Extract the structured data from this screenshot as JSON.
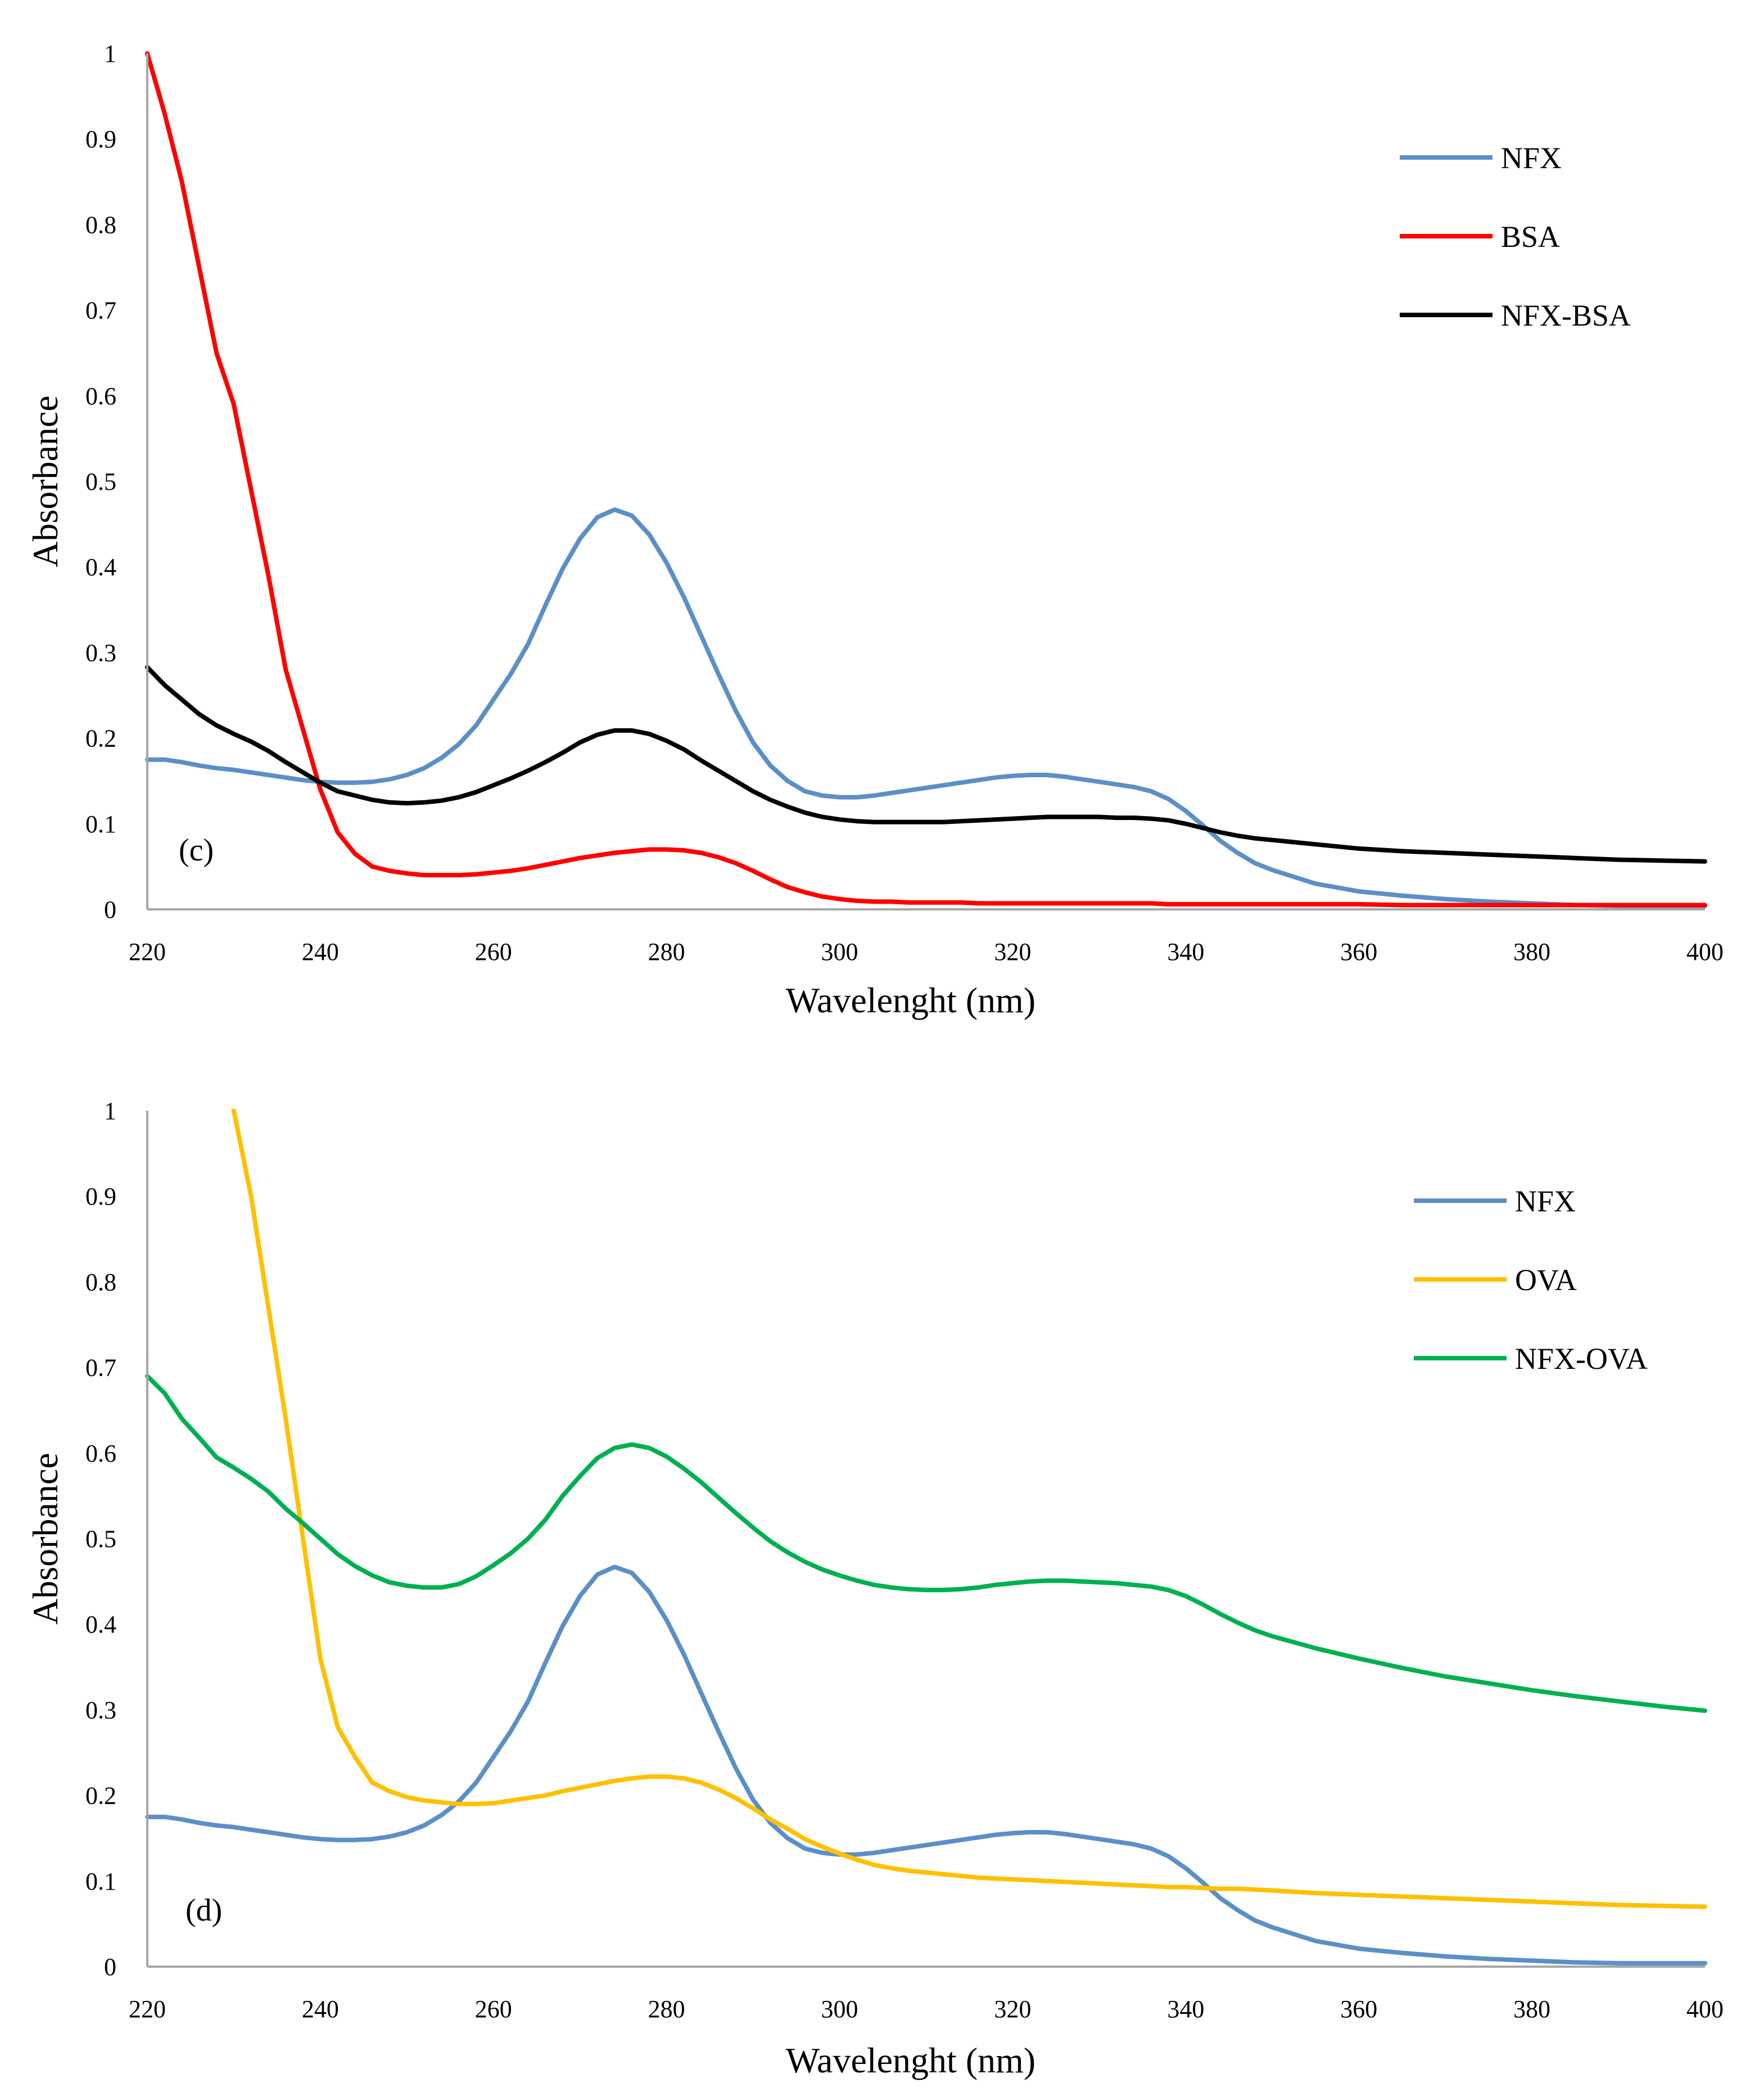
{
  "chart_data": [
    {
      "type": "line",
      "panel_label": "(c)",
      "title": "",
      "xlabel": "Wavelenght (nm)",
      "ylabel": "Absorbance",
      "xlim": [
        220,
        400
      ],
      "ylim": [
        0,
        1
      ],
      "xticks": [
        220,
        240,
        260,
        280,
        300,
        320,
        340,
        360,
        380,
        400
      ],
      "xtick_labels": [
        "220",
        "240",
        "260",
        "280",
        "300",
        "320",
        "340",
        "360",
        "380",
        "400"
      ],
      "yticks": [
        0,
        0.1,
        0.2,
        0.3,
        0.4,
        0.5,
        0.6,
        0.7,
        0.8,
        0.9,
        1
      ],
      "ytick_labels": [
        "0",
        "0.1",
        "0.2",
        "0.3",
        "0.4",
        "0.5",
        "0.6",
        "0.7",
        "0.8",
        "0.9",
        "1"
      ],
      "legend_position": "top-right",
      "grid": false,
      "x": [
        220,
        222,
        224,
        226,
        228,
        230,
        232,
        234,
        236,
        238,
        240,
        242,
        244,
        246,
        248,
        250,
        252,
        254,
        256,
        258,
        260,
        262,
        264,
        266,
        268,
        270,
        272,
        274,
        276,
        278,
        280,
        282,
        284,
        286,
        288,
        290,
        292,
        294,
        296,
        298,
        300,
        302,
        304,
        306,
        308,
        310,
        312,
        314,
        316,
        318,
        320,
        322,
        324,
        326,
        328,
        330,
        332,
        334,
        336,
        338,
        340,
        342,
        344,
        346,
        348,
        350,
        355,
        360,
        365,
        370,
        375,
        380,
        385,
        390,
        395,
        400
      ],
      "series": [
        {
          "name": "NFX",
          "color": "#5B8FC7",
          "values": [
            0.175,
            0.175,
            0.172,
            0.168,
            0.165,
            0.163,
            0.16,
            0.157,
            0.154,
            0.151,
            0.149,
            0.148,
            0.148,
            0.149,
            0.152,
            0.157,
            0.165,
            0.177,
            0.193,
            0.215,
            0.245,
            0.275,
            0.31,
            0.355,
            0.398,
            0.433,
            0.458,
            0.467,
            0.46,
            0.438,
            0.405,
            0.365,
            0.32,
            0.275,
            0.232,
            0.195,
            0.168,
            0.15,
            0.138,
            0.133,
            0.131,
            0.131,
            0.133,
            0.136,
            0.139,
            0.142,
            0.145,
            0.148,
            0.151,
            0.154,
            0.156,
            0.157,
            0.157,
            0.155,
            0.152,
            0.149,
            0.146,
            0.143,
            0.138,
            0.129,
            0.115,
            0.098,
            0.08,
            0.066,
            0.054,
            0.046,
            0.03,
            0.021,
            0.016,
            0.012,
            0.009,
            0.007,
            0.005,
            0.004,
            0.004,
            0.004
          ]
        },
        {
          "name": "BSA",
          "color": "#FF0000",
          "values": [
            1.0,
            0.93,
            0.85,
            0.75,
            0.65,
            0.59,
            0.49,
            0.39,
            0.28,
            0.21,
            0.14,
            0.09,
            0.065,
            0.05,
            0.045,
            0.042,
            0.04,
            0.04,
            0.04,
            0.041,
            0.043,
            0.045,
            0.048,
            0.052,
            0.056,
            0.06,
            0.063,
            0.066,
            0.068,
            0.07,
            0.07,
            0.069,
            0.066,
            0.061,
            0.054,
            0.045,
            0.035,
            0.026,
            0.02,
            0.015,
            0.012,
            0.01,
            0.009,
            0.009,
            0.008,
            0.008,
            0.008,
            0.008,
            0.007,
            0.007,
            0.007,
            0.007,
            0.007,
            0.007,
            0.007,
            0.007,
            0.007,
            0.007,
            0.007,
            0.006,
            0.006,
            0.006,
            0.006,
            0.006,
            0.006,
            0.006,
            0.006,
            0.006,
            0.005,
            0.005,
            0.005,
            0.005,
            0.005,
            0.005,
            0.005,
            0.005
          ]
        },
        {
          "name": "NFX-BSA",
          "color": "#000000",
          "values": [
            0.283,
            0.262,
            0.245,
            0.228,
            0.215,
            0.205,
            0.196,
            0.185,
            0.172,
            0.16,
            0.148,
            0.138,
            0.133,
            0.128,
            0.125,
            0.124,
            0.125,
            0.127,
            0.131,
            0.137,
            0.145,
            0.153,
            0.162,
            0.172,
            0.183,
            0.195,
            0.204,
            0.209,
            0.209,
            0.205,
            0.197,
            0.187,
            0.174,
            0.162,
            0.15,
            0.138,
            0.128,
            0.12,
            0.113,
            0.108,
            0.105,
            0.103,
            0.102,
            0.102,
            0.102,
            0.102,
            0.102,
            0.103,
            0.104,
            0.105,
            0.106,
            0.107,
            0.108,
            0.108,
            0.108,
            0.108,
            0.107,
            0.107,
            0.106,
            0.104,
            0.1,
            0.095,
            0.09,
            0.086,
            0.083,
            0.081,
            0.076,
            0.071,
            0.068,
            0.066,
            0.064,
            0.062,
            0.06,
            0.058,
            0.057,
            0.056
          ]
        }
      ]
    },
    {
      "type": "line",
      "panel_label": "(d)",
      "title": "",
      "xlabel": "Wavelenght (nm)",
      "ylabel": "Absorbance",
      "xlim": [
        220,
        400
      ],
      "ylim": [
        0,
        1
      ],
      "xticks": [
        220,
        240,
        260,
        280,
        300,
        320,
        340,
        360,
        380,
        400
      ],
      "xtick_labels": [
        "220",
        "240",
        "260",
        "280",
        "300",
        "320",
        "340",
        "360",
        "380",
        "400"
      ],
      "yticks": [
        0,
        0.1,
        0.2,
        0.3,
        0.4,
        0.5,
        0.6,
        0.7,
        0.8,
        0.9,
        1
      ],
      "ytick_labels": [
        "0",
        "0.1",
        "0.2",
        "0.3",
        "0.4",
        "0.5",
        "0.6",
        "0.7",
        "0.8",
        "0.9",
        "1"
      ],
      "legend_position": "top-right",
      "grid": false,
      "x": [
        220,
        222,
        224,
        226,
        228,
        230,
        232,
        234,
        236,
        238,
        240,
        242,
        244,
        246,
        248,
        250,
        252,
        254,
        256,
        258,
        260,
        262,
        264,
        266,
        268,
        270,
        272,
        274,
        276,
        278,
        280,
        282,
        284,
        286,
        288,
        290,
        292,
        294,
        296,
        298,
        300,
        302,
        304,
        306,
        308,
        310,
        312,
        314,
        316,
        318,
        320,
        322,
        324,
        326,
        328,
        330,
        332,
        334,
        336,
        338,
        340,
        342,
        344,
        346,
        348,
        350,
        355,
        360,
        365,
        370,
        375,
        380,
        385,
        390,
        395,
        400
      ],
      "series": [
        {
          "name": "NFX",
          "color": "#5B8FC7",
          "values": [
            0.175,
            0.175,
            0.172,
            0.168,
            0.165,
            0.163,
            0.16,
            0.157,
            0.154,
            0.151,
            0.149,
            0.148,
            0.148,
            0.149,
            0.152,
            0.157,
            0.165,
            0.177,
            0.193,
            0.215,
            0.245,
            0.275,
            0.31,
            0.355,
            0.398,
            0.433,
            0.458,
            0.467,
            0.46,
            0.438,
            0.405,
            0.365,
            0.32,
            0.275,
            0.232,
            0.195,
            0.168,
            0.15,
            0.138,
            0.133,
            0.131,
            0.131,
            0.133,
            0.136,
            0.139,
            0.142,
            0.145,
            0.148,
            0.151,
            0.154,
            0.156,
            0.157,
            0.157,
            0.155,
            0.152,
            0.149,
            0.146,
            0.143,
            0.138,
            0.129,
            0.115,
            0.098,
            0.08,
            0.066,
            0.054,
            0.046,
            0.03,
            0.021,
            0.016,
            0.012,
            0.009,
            0.007,
            0.005,
            0.004,
            0.004,
            0.004
          ]
        },
        {
          "name": "OVA",
          "color": "#FFC000",
          "values": [
            null,
            null,
            null,
            null,
            null,
            1.0,
            0.9,
            0.77,
            0.64,
            0.5,
            0.36,
            0.28,
            0.245,
            0.215,
            0.205,
            0.198,
            0.194,
            0.192,
            0.19,
            0.19,
            0.191,
            0.194,
            0.197,
            0.2,
            0.205,
            0.209,
            0.213,
            0.217,
            0.22,
            0.222,
            0.222,
            0.22,
            0.215,
            0.207,
            0.197,
            0.185,
            0.172,
            0.161,
            0.149,
            0.14,
            0.132,
            0.125,
            0.119,
            0.115,
            0.112,
            0.11,
            0.108,
            0.106,
            0.104,
            0.103,
            0.102,
            0.101,
            0.1,
            0.099,
            0.098,
            0.097,
            0.096,
            0.095,
            0.094,
            0.093,
            0.093,
            0.092,
            0.091,
            0.091,
            0.09,
            0.089,
            0.086,
            0.084,
            0.082,
            0.08,
            0.078,
            0.076,
            0.074,
            0.072,
            0.071,
            0.07
          ]
        },
        {
          "name": "NFX-OVA",
          "color": "#00B050",
          "values": [
            0.69,
            0.67,
            0.64,
            0.618,
            0.595,
            0.583,
            0.57,
            0.555,
            0.535,
            0.518,
            0.5,
            0.482,
            0.468,
            0.457,
            0.449,
            0.445,
            0.443,
            0.443,
            0.447,
            0.456,
            0.469,
            0.483,
            0.5,
            0.522,
            0.55,
            0.573,
            0.594,
            0.606,
            0.61,
            0.606,
            0.596,
            0.582,
            0.566,
            0.548,
            0.53,
            0.513,
            0.497,
            0.484,
            0.473,
            0.464,
            0.457,
            0.451,
            0.446,
            0.443,
            0.441,
            0.44,
            0.44,
            0.441,
            0.443,
            0.446,
            0.448,
            0.45,
            0.451,
            0.451,
            0.45,
            0.449,
            0.448,
            0.446,
            0.444,
            0.44,
            0.433,
            0.423,
            0.412,
            0.402,
            0.393,
            0.386,
            0.372,
            0.36,
            0.349,
            0.339,
            0.331,
            0.323,
            0.316,
            0.31,
            0.304,
            0.299
          ]
        }
      ]
    }
  ]
}
